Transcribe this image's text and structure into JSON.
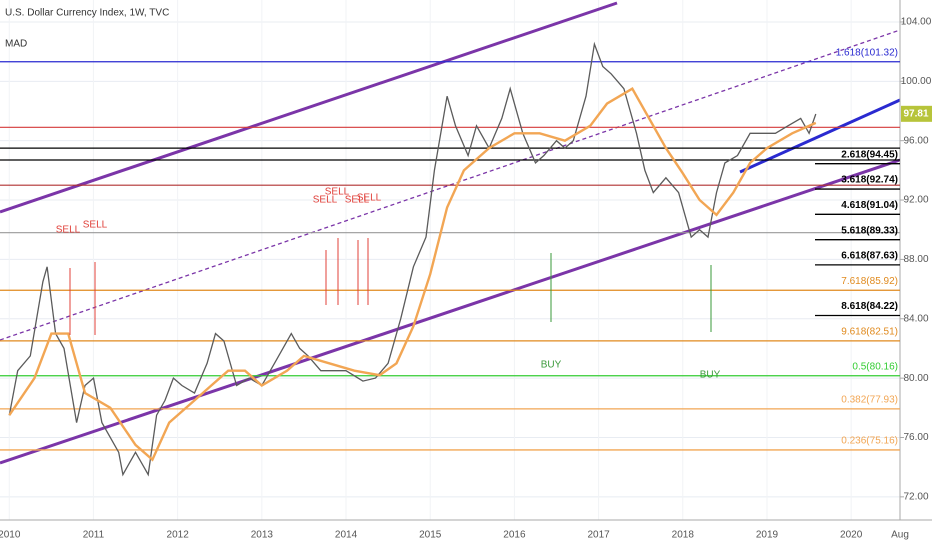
{
  "chart_data": {
    "type": "line",
    "title": "U.S. Dollar Currency Index, 1W, TVC",
    "subtitle": "MAD",
    "xlim": [
      2009.89,
      2020.58
    ],
    "xticks": [
      2010,
      2011,
      2012,
      2013,
      2014,
      2015,
      2016,
      2017,
      2018,
      2019,
      2020,
      {
        "value": 2020.58,
        "label": "Aug"
      }
    ],
    "ylim": [
      70.44,
      105.48
    ],
    "yticks": [
      {
        "value": 72,
        "label": "72.00"
      },
      {
        "value": 76,
        "label": "76.00"
      },
      {
        "value": 80,
        "label": "80.00"
      },
      {
        "value": 84,
        "label": "84.00"
      },
      {
        "value": 88,
        "label": "88.00"
      },
      {
        "value": 92,
        "label": "92.00"
      },
      {
        "value": 96,
        "label": "96.00"
      },
      {
        "value": 100,
        "label": "100.00"
      },
      {
        "value": 104,
        "label": "104.00"
      }
    ],
    "grid": true,
    "series": [
      {
        "color": "#5b5b5b",
        "x": [
          2010.0,
          2010.1,
          2010.25,
          2010.4,
          2010.45,
          2010.55,
          2010.65,
          2010.8,
          2010.9,
          2011.0,
          2011.1,
          2011.3,
          2011.35,
          2011.5,
          2011.6,
          2011.65,
          2011.75,
          2011.85,
          2011.95,
          2012.05,
          2012.2,
          2012.35,
          2012.45,
          2012.55,
          2012.7,
          2012.85,
          2013.0,
          2013.15,
          2013.35,
          2013.45,
          2013.55,
          2013.7,
          2013.85,
          2014.0,
          2014.2,
          2014.35,
          2014.5,
          2014.65,
          2014.8,
          2014.95,
          2015.05,
          2015.2,
          2015.3,
          2015.45,
          2015.55,
          2015.7,
          2015.85,
          2015.95,
          2016.1,
          2016.25,
          2016.35,
          2016.5,
          2016.6,
          2016.7,
          2016.85,
          2016.95,
          2017.05,
          2017.15,
          2017.3,
          2017.45,
          2017.55,
          2017.65,
          2017.8,
          2017.95,
          2018.1,
          2018.2,
          2018.3,
          2018.4,
          2018.5,
          2018.65,
          2018.8,
          2018.95,
          2019.1,
          2019.25,
          2019.4,
          2019.5,
          2019.58
        ],
        "values": [
          77.5,
          80.5,
          81.5,
          86.5,
          87.5,
          83,
          82,
          77,
          79.5,
          80,
          77,
          75,
          73.5,
          75,
          74,
          73.5,
          77.5,
          78.5,
          80,
          79.5,
          79,
          81,
          83,
          82.5,
          79.5,
          80,
          79.5,
          81,
          83,
          82,
          81.5,
          80.5,
          80.5,
          80.5,
          79.8,
          80,
          81,
          84,
          87.5,
          89.5,
          94,
          99,
          97,
          95,
          97,
          95.5,
          97.5,
          99.5,
          96.5,
          94.5,
          95,
          96,
          95.5,
          96,
          99,
          102.5,
          101,
          100.5,
          99.5,
          96.5,
          94,
          92.5,
          93.5,
          92.5,
          89.5,
          90,
          89.5,
          92.5,
          94.5,
          95,
          96.5,
          96.5,
          96.5,
          97,
          97.5,
          96.5,
          97.8
        ]
      },
      {
        "color": "#f2a654",
        "x": [
          2010.0,
          2010.3,
          2010.5,
          2010.7,
          2010.9,
          2011.2,
          2011.5,
          2011.7,
          2011.9,
          2012.2,
          2012.4,
          2012.6,
          2012.8,
          2013.0,
          2013.3,
          2013.5,
          2013.8,
          2014.1,
          2014.4,
          2014.6,
          2014.8,
          2015.0,
          2015.2,
          2015.4,
          2015.7,
          2016.0,
          2016.3,
          2016.6,
          2016.9,
          2017.1,
          2017.4,
          2017.6,
          2017.8,
          2018.0,
          2018.2,
          2018.4,
          2018.6,
          2018.8,
          2019.0,
          2019.3,
          2019.58
        ],
        "values": [
          77.5,
          80,
          83,
          83,
          79,
          78,
          75.5,
          74.5,
          77,
          78.5,
          79.5,
          80.5,
          80.5,
          79.5,
          80.5,
          81.5,
          81,
          80.5,
          80.2,
          81,
          83.5,
          87,
          91.5,
          94,
          95.5,
          96.5,
          96.5,
          96,
          97,
          98.5,
          99.5,
          97.5,
          95.5,
          93.8,
          92,
          91,
          92.5,
          94.5,
          95.5,
          96.5,
          97.2
        ]
      }
    ],
    "levels": [
      {
        "label": "1.618(101.32)",
        "value": 101.32,
        "color": "#2a2ad0",
        "full": true
      },
      {
        "label": "2.618(94.45)",
        "value": 94.45,
        "color": "#000000",
        "full": false
      },
      {
        "label": "3.618(92.74)",
        "value": 92.74,
        "color": "#000000",
        "full": false
      },
      {
        "label": "4.618(91.04)",
        "value": 91.04,
        "color": "#000000",
        "full": false
      },
      {
        "label": "5.618(89.33)",
        "value": 89.33,
        "color": "#000000",
        "full": false
      },
      {
        "label": "6.618(87.63)",
        "value": 87.63,
        "color": "#000000",
        "full": false
      },
      {
        "label": "7.618(85.92)",
        "value": 85.92,
        "color": "#e08a1e",
        "full": true
      },
      {
        "label": "8.618(84.22)",
        "value": 84.22,
        "color": "#000000",
        "full": false
      },
      {
        "label": "9.618(82.51)",
        "value": 82.51,
        "color": "#e08a1e",
        "full": true
      },
      {
        "label": "0.5(80.16)",
        "value": 80.16,
        "color": "#33cc33",
        "full": true
      },
      {
        "label": "0.382(77.93)",
        "value": 77.93,
        "color": "#f2a654",
        "full": true
      },
      {
        "label": "0.236(75.16)",
        "value": 75.16,
        "color": "#f2a654",
        "full": true
      }
    ],
    "lines": [
      {
        "value": 96.9,
        "color": "#d43a3a"
      },
      {
        "value": 95.5,
        "color": "#000000"
      },
      {
        "value": 94.7,
        "color": "#000000"
      },
      {
        "value": 93.0,
        "color": "#b03030"
      },
      {
        "value": 89.8,
        "color": "#999999"
      }
    ],
    "annotations": [
      "SELL",
      "SELL",
      "SELL",
      "SELL",
      "SELL",
      "SELL",
      "BUY",
      "BUY"
    ],
    "last_price": 97.81
  }
}
